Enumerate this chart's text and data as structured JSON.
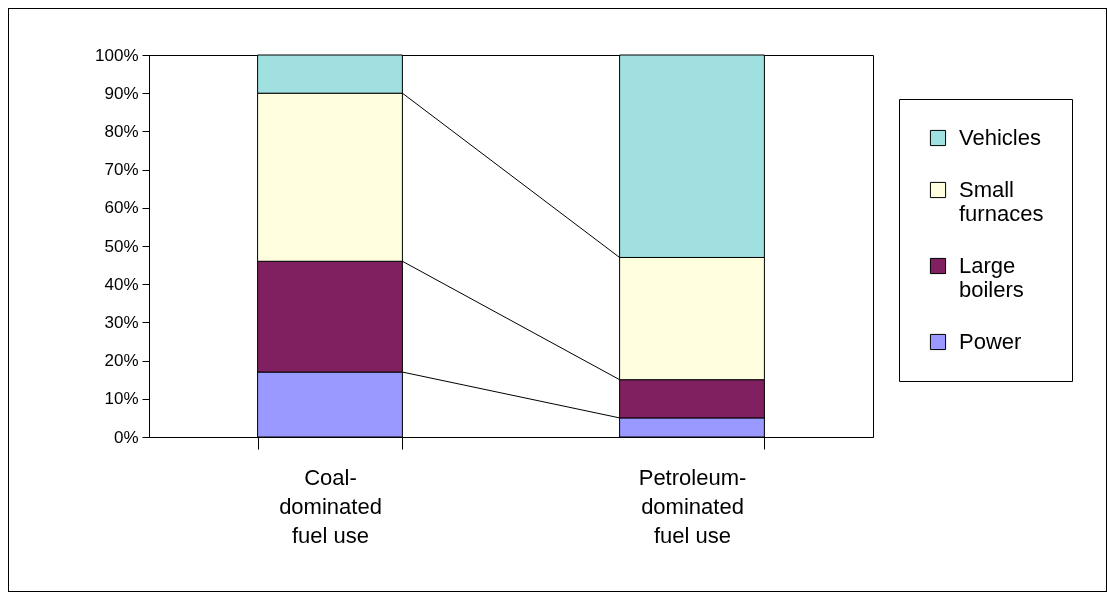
{
  "chart_data": {
    "type": "bar",
    "stacked": true,
    "categories": [
      "Coal-dominated fuel use",
      "Petroleum-dominated fuel use"
    ],
    "series": [
      {
        "name": "Power",
        "color": "#9999ff",
        "values": [
          17,
          5
        ]
      },
      {
        "name": "Large boilers",
        "color": "#802060",
        "values": [
          29,
          10
        ]
      },
      {
        "name": "Small furnaces",
        "color": "#ffffe0",
        "values": [
          44,
          32
        ]
      },
      {
        "name": "Vehicles",
        "color": "#a0e0e0",
        "values": [
          10,
          53
        ]
      }
    ],
    "ylim": [
      0,
      100
    ],
    "yticks": [
      {
        "value": 0,
        "label": "0%"
      },
      {
        "value": 10,
        "label": "10%"
      },
      {
        "value": 20,
        "label": "20%"
      },
      {
        "value": 30,
        "label": "30%"
      },
      {
        "value": 40,
        "label": "40%"
      },
      {
        "value": 50,
        "label": "50%"
      },
      {
        "value": 60,
        "label": "60%"
      },
      {
        "value": 70,
        "label": "70%"
      },
      {
        "value": 80,
        "label": "80%"
      },
      {
        "value": 90,
        "label": "90%"
      },
      {
        "value": 100,
        "label": "100%"
      }
    ],
    "grid": false,
    "legend": "right"
  }
}
